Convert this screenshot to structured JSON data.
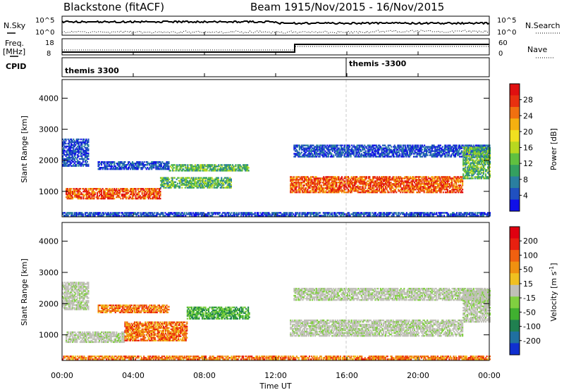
{
  "header": {
    "station": "Blackstone (fitACF)",
    "beam": "Beam 19",
    "dates": "15/Nov/2015 - 16/Nov/2015"
  },
  "strips": {
    "nsky_label": "N.Sky",
    "nsky_ticks": [
      "10^5",
      "10^0"
    ],
    "nsearch_label": "N.Search",
    "freq_label_1": "Freq.",
    "freq_label_2": "[MHz]",
    "freq_ticks": [
      "18",
      "8"
    ],
    "nave_label": "Nave",
    "nave_ticks": [
      "60",
      "0"
    ],
    "cpid_label": "CPID",
    "cpid_mode_1": "themis 3300",
    "cpid_mode_2": "themis -3300"
  },
  "x_axis": {
    "label": "Time UT",
    "ticks": [
      "00:00",
      "04:00",
      "08:00",
      "12:00",
      "16:00",
      "20:00",
      "00:00"
    ]
  },
  "chart_data": [
    {
      "type": "heatmap",
      "name": "power-panel",
      "ylabel": "Slant Range [km]",
      "ylim": [
        180,
        4600
      ],
      "yticks": [
        "1000",
        "2000",
        "3000",
        "4000"
      ],
      "xlim_hours": [
        0,
        24
      ],
      "colorbar": {
        "label": "Power [dB]",
        "ticks": [
          "4",
          "8",
          "12",
          "16",
          "20",
          "24",
          "28"
        ],
        "colors": [
          "#1010e8",
          "#2050c0",
          "#2a7fa0",
          "#34a060",
          "#60c040",
          "#b8d820",
          "#f0e020",
          "#f5b010",
          "#f07010",
          "#e83010",
          "#e01010"
        ]
      },
      "echo_bands": [
        {
          "t0": 0.2,
          "t1": 5.5,
          "r0": 750,
          "r1": 1100,
          "level": "high"
        },
        {
          "t0": 5.5,
          "t1": 9.5,
          "r0": 1100,
          "r1": 1450,
          "level": "mid"
        },
        {
          "t0": 6.0,
          "t1": 10.5,
          "r0": 1650,
          "r1": 1850,
          "level": "mid"
        },
        {
          "t0": 2.0,
          "t1": 6.0,
          "r0": 1700,
          "r1": 1950,
          "level": "low"
        },
        {
          "t0": 12.8,
          "t1": 22.5,
          "r0": 950,
          "r1": 1450,
          "level": "high"
        },
        {
          "t0": 13.0,
          "t1": 24.0,
          "r0": 2100,
          "r1": 2500,
          "level": "low"
        },
        {
          "t0": 22.5,
          "t1": 24.0,
          "r0": 1400,
          "r1": 2400,
          "level": "mid"
        },
        {
          "t0": 0.0,
          "t1": 1.5,
          "r0": 1800,
          "r1": 2700,
          "level": "low"
        },
        {
          "t0": 0.0,
          "t1": 24.0,
          "r0": 200,
          "r1": 330,
          "level": "low"
        }
      ]
    },
    {
      "type": "heatmap",
      "name": "velocity-panel",
      "ylabel": "Slant Range [km]",
      "ylim": [
        180,
        4600
      ],
      "yticks": [
        "1000",
        "2000",
        "3000",
        "4000"
      ],
      "xlim_hours": [
        0,
        24
      ],
      "colorbar": {
        "label": "Velocity [m s^-1]",
        "ticks": [
          "200",
          "100",
          "50",
          "15",
          "-15",
          "-50",
          "-100",
          "-200"
        ],
        "colors": [
          "#1030d0",
          "#2070a0",
          "#208050",
          "#40b030",
          "#80d040",
          "#c0c0b8",
          "#f0c020",
          "#f09010",
          "#f06010",
          "#e82010",
          "#e00010"
        ]
      },
      "echo_bands": [
        {
          "t0": 0.2,
          "t1": 3.5,
          "r0": 750,
          "r1": 1100,
          "level": "gray"
        },
        {
          "t0": 3.5,
          "t1": 7.0,
          "r0": 800,
          "r1": 1400,
          "level": "orange"
        },
        {
          "t0": 7.0,
          "t1": 10.5,
          "r0": 1500,
          "r1": 1900,
          "level": "green"
        },
        {
          "t0": 2.0,
          "t1": 6.0,
          "r0": 1700,
          "r1": 1950,
          "level": "orange"
        },
        {
          "t0": 12.8,
          "t1": 22.5,
          "r0": 950,
          "r1": 1450,
          "level": "gray"
        },
        {
          "t0": 13.0,
          "t1": 24.0,
          "r0": 2100,
          "r1": 2500,
          "level": "gray"
        },
        {
          "t0": 22.5,
          "t1": 24.0,
          "r0": 1400,
          "r1": 2400,
          "level": "gray"
        },
        {
          "t0": 0.0,
          "t1": 1.5,
          "r0": 1800,
          "r1": 2700,
          "level": "gray"
        },
        {
          "t0": 0.0,
          "t1": 24.0,
          "r0": 200,
          "r1": 330,
          "level": "orange"
        }
      ]
    }
  ]
}
